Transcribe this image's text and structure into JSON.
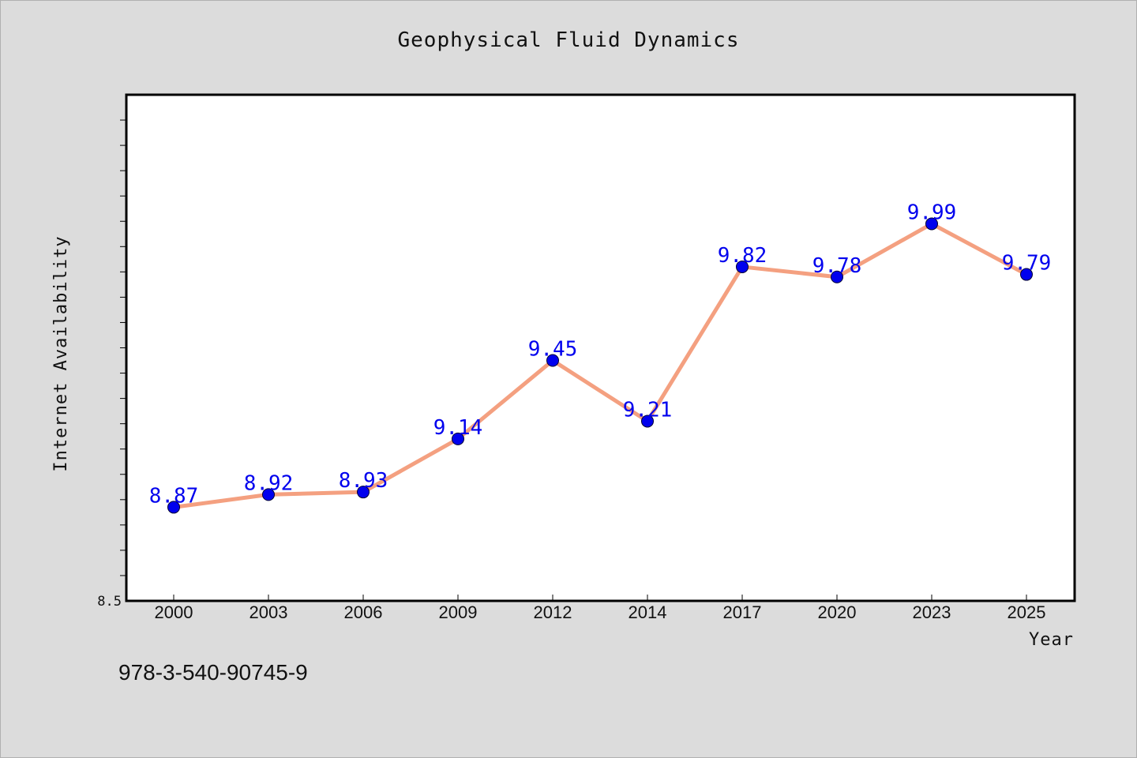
{
  "chart_data": {
    "type": "line",
    "title": "Geophysical Fluid Dynamics",
    "xlabel": "Year",
    "ylabel": "Internet Availability",
    "categories": [
      "2000",
      "2003",
      "2006",
      "2009",
      "2012",
      "2014",
      "2017",
      "2020",
      "2023",
      "2025"
    ],
    "series": [
      {
        "values": [
          8.87,
          8.92,
          8.93,
          9.14,
          9.45,
          9.21,
          9.82,
          9.78,
          9.99,
          9.79
        ]
      }
    ],
    "data_labels": [
      "8.87",
      "8.92",
      "8.93",
      "9.14",
      "9.45",
      "9.21",
      "9.82",
      "9.78",
      "9.99",
      "9.79"
    ],
    "ylim": [
      8.5,
      10.5
    ],
    "y_tick_labels": [
      {
        "value": 8.5,
        "label": "8.5"
      }
    ],
    "grid": false,
    "colors": {
      "line": "#f4a080",
      "marker": "#0000ee",
      "label": "#0000ee",
      "plot_bg": "#ffffff",
      "page_bg": "#dcdcdc"
    }
  },
  "footer": {
    "isbn": "978-3-540-90745-9"
  }
}
